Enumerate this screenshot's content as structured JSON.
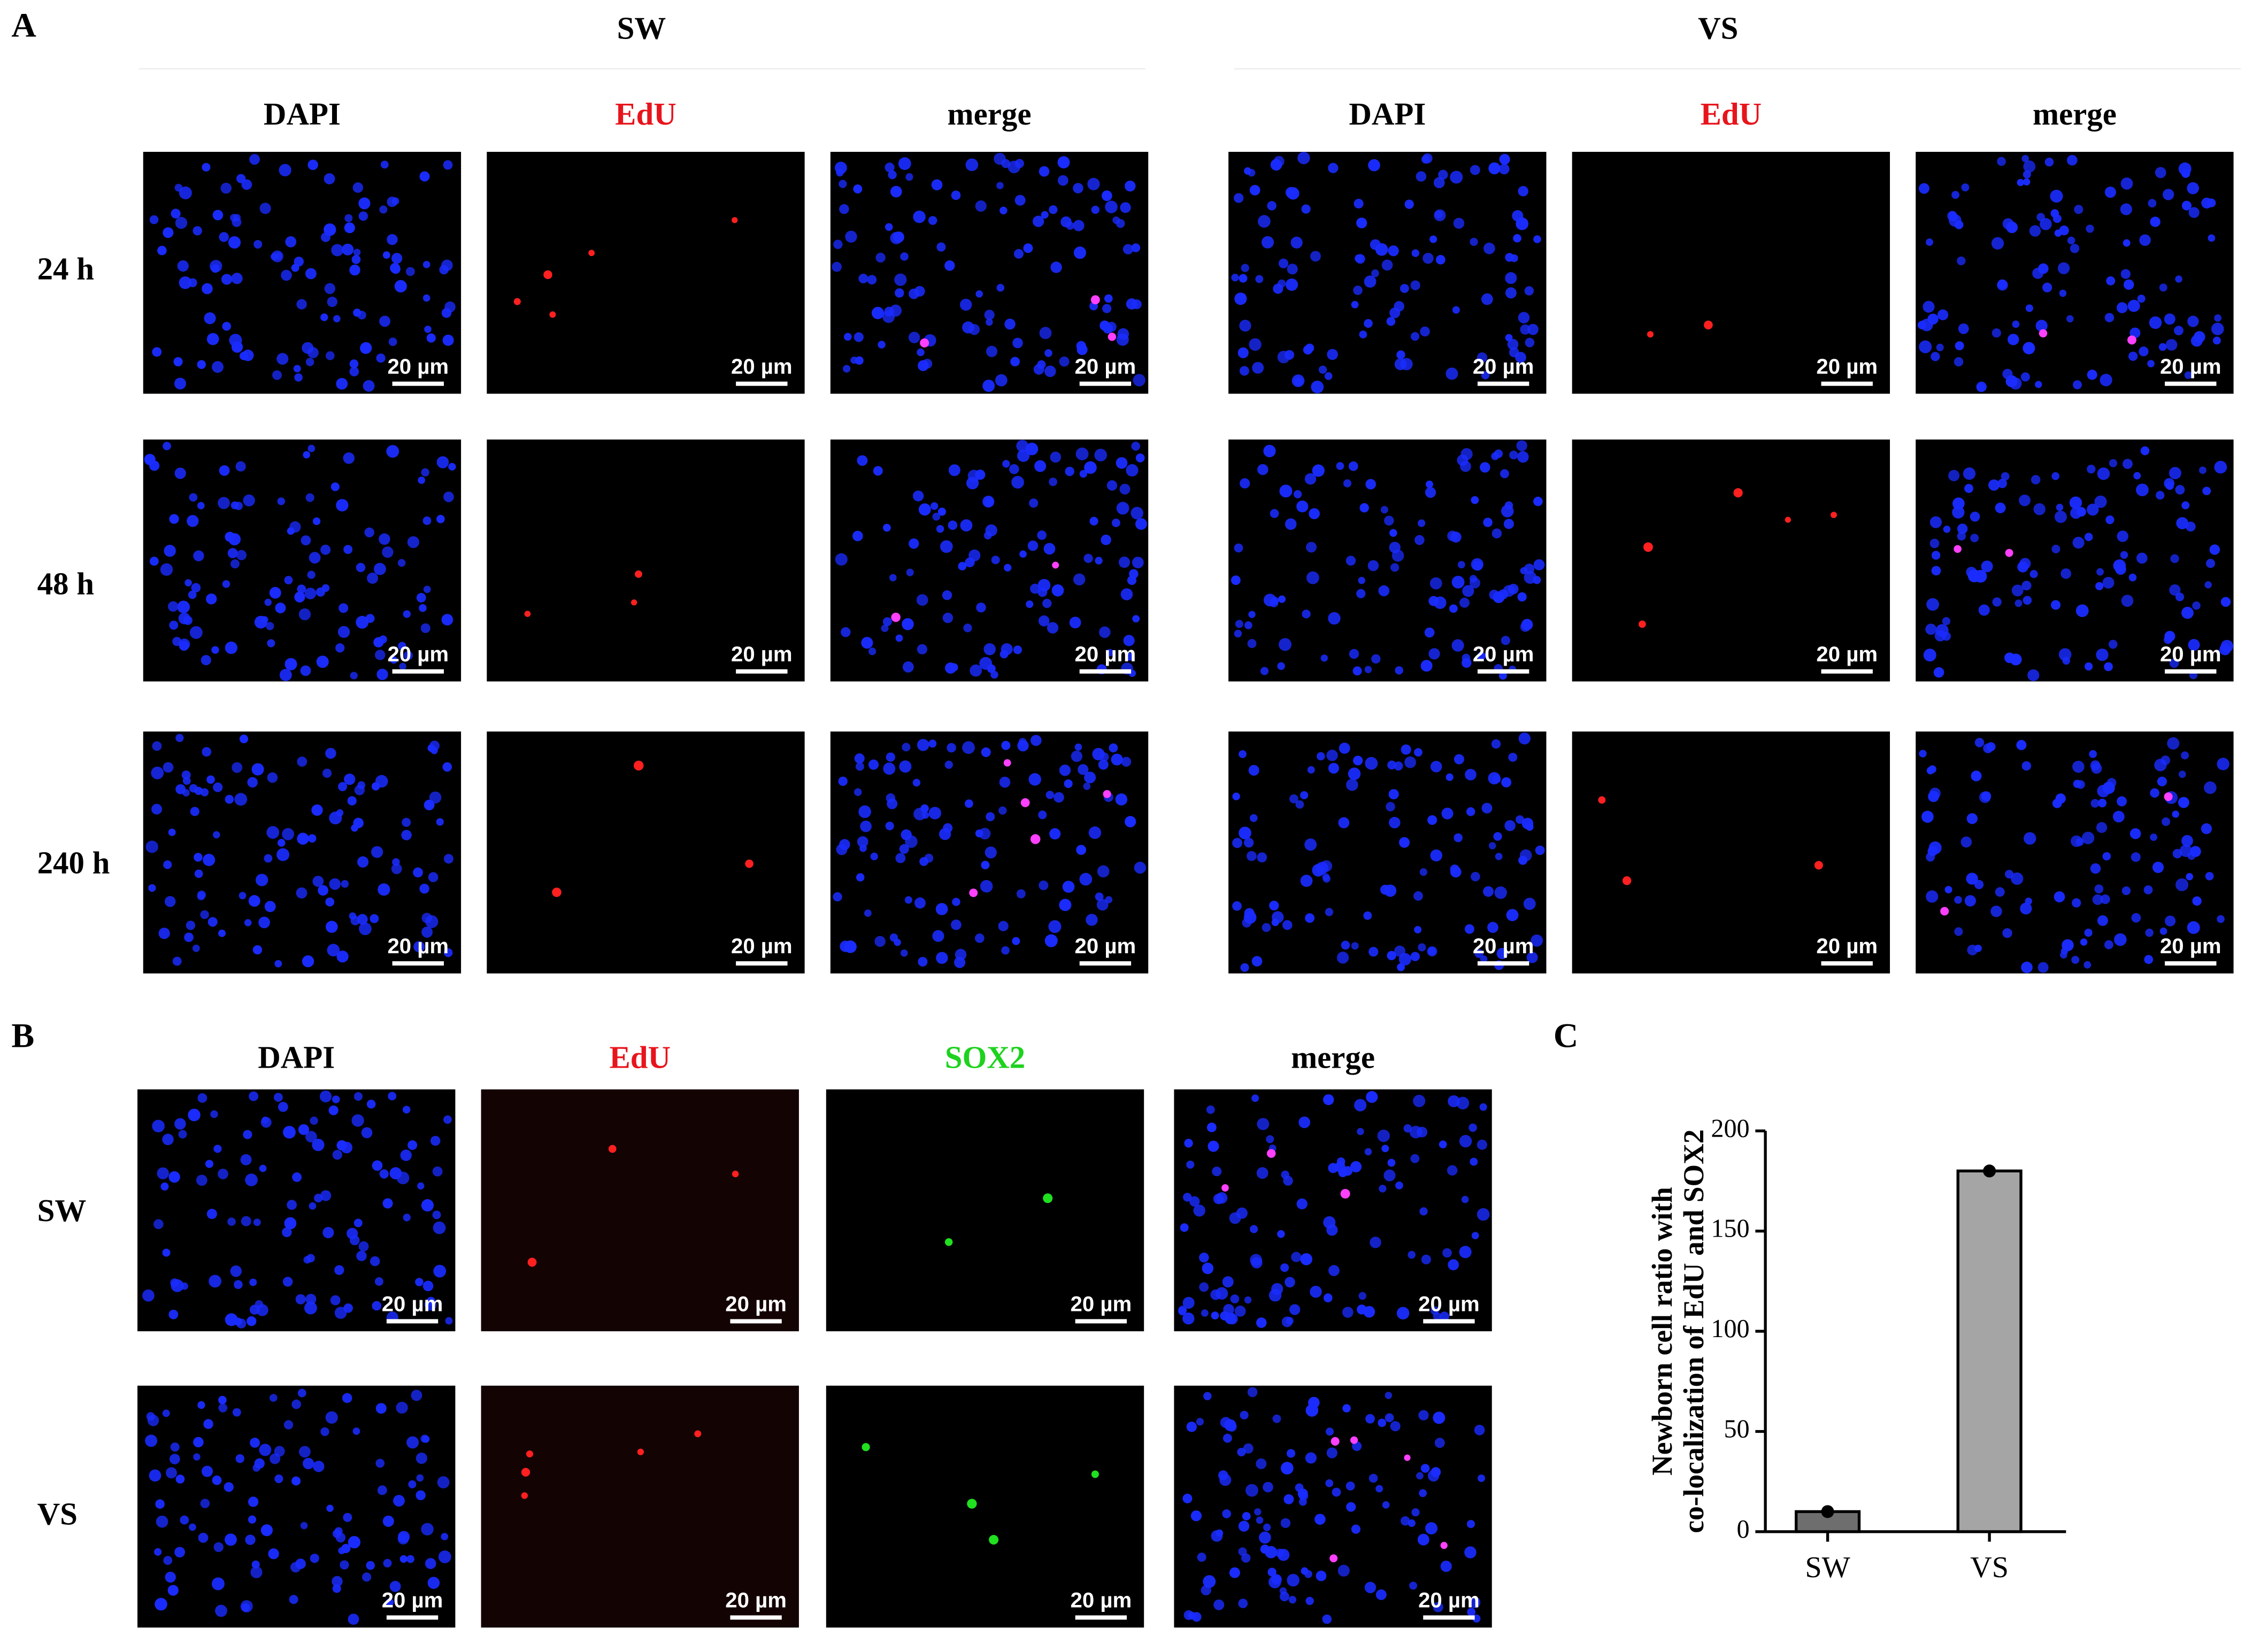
{
  "panel_a": {
    "label": "A",
    "groups": [
      "SW",
      "VS"
    ],
    "channels": [
      "DAPI",
      "EdU",
      "merge"
    ],
    "rows": [
      "24 h",
      "48 h",
      "240 h"
    ],
    "scale_bar": "20 µm"
  },
  "panel_b": {
    "label": "B",
    "channels": [
      "DAPI",
      "EdU",
      "SOX2",
      "merge"
    ],
    "rows": [
      "SW",
      "VS"
    ],
    "scale_bar": "20 µm"
  },
  "chart_data": {
    "type": "bar",
    "panel_label": "C",
    "y_label": [
      "Newborn cell ratio with",
      "co-localization of EdU and SOX2"
    ],
    "categories": [
      "SW",
      "VS"
    ],
    "values": [
      10,
      180
    ],
    "colors": [
      "#6e6e6e",
      "#a5a5a5"
    ],
    "ylim": [
      0,
      200
    ],
    "yticks": [
      0,
      50,
      100,
      150,
      200
    ]
  }
}
